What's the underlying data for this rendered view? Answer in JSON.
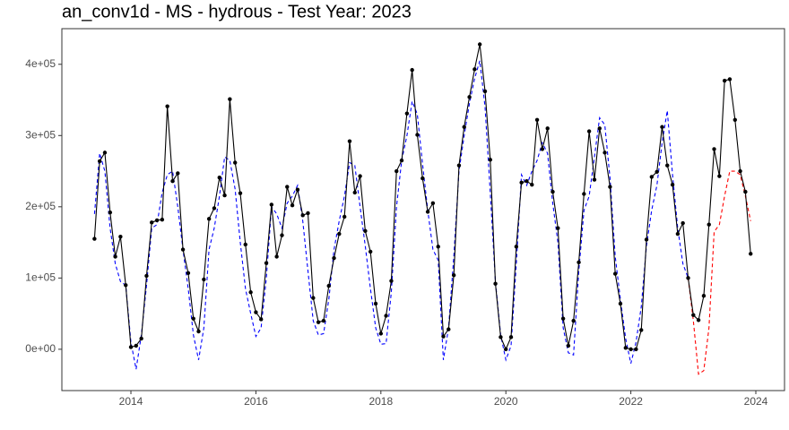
{
  "chart_data": {
    "type": "line",
    "title": "an_conv1d - MS - hydrous - Test Year: 2023",
    "x": [
      2013.417,
      2013.5,
      2013.583,
      2013.667,
      2013.75,
      2013.833,
      2013.917,
      2014,
      2014.083,
      2014.167,
      2014.25,
      2014.333,
      2014.417,
      2014.5,
      2014.583,
      2014.667,
      2014.75,
      2014.833,
      2014.917,
      2015,
      2015.083,
      2015.167,
      2015.25,
      2015.333,
      2015.417,
      2015.5,
      2015.583,
      2015.667,
      2015.75,
      2015.833,
      2015.917,
      2016,
      2016.083,
      2016.167,
      2016.25,
      2016.333,
      2016.417,
      2016.5,
      2016.583,
      2016.667,
      2016.75,
      2016.833,
      2016.917,
      2017,
      2017.083,
      2017.167,
      2017.25,
      2017.333,
      2017.417,
      2017.5,
      2017.583,
      2017.667,
      2017.75,
      2017.833,
      2017.917,
      2018,
      2018.083,
      2018.167,
      2018.25,
      2018.333,
      2018.417,
      2018.5,
      2018.583,
      2018.667,
      2018.75,
      2018.833,
      2018.917,
      2019,
      2019.083,
      2019.167,
      2019.25,
      2019.333,
      2019.417,
      2019.5,
      2019.583,
      2019.667,
      2019.75,
      2019.833,
      2019.917,
      2020,
      2020.083,
      2020.167,
      2020.25,
      2020.333,
      2020.417,
      2020.5,
      2020.583,
      2020.667,
      2020.75,
      2020.833,
      2020.917,
      2021,
      2021.083,
      2021.167,
      2021.25,
      2021.333,
      2021.417,
      2021.5,
      2021.583,
      2021.667,
      2021.75,
      2021.833,
      2021.917,
      2022,
      2022.083,
      2022.167,
      2022.25,
      2022.333,
      2022.417,
      2022.5,
      2022.583,
      2022.667,
      2022.75,
      2022.833,
      2022.917,
      2023,
      2023.083,
      2023.167,
      2023.25,
      2023.333,
      2023.417,
      2023.5,
      2023.583,
      2023.667,
      2023.75,
      2023.833,
      2023.917
    ],
    "series": [
      {
        "color": "#0000ff",
        "dash": true,
        "markers": false,
        "values": [
          190000,
          275000,
          250000,
          170000,
          120000,
          95000,
          90000,
          10000,
          -28000,
          20000,
          90000,
          170000,
          175000,
          220000,
          245000,
          250000,
          200000,
          140000,
          85000,
          20000,
          -15000,
          30000,
          140000,
          170000,
          215000,
          270000,
          265000,
          225000,
          150000,
          85000,
          50000,
          18000,
          30000,
          100000,
          200000,
          190000,
          170000,
          205000,
          215000,
          230000,
          180000,
          110000,
          40000,
          20000,
          22000,
          70000,
          140000,
          180000,
          215000,
          262000,
          258000,
          200000,
          145000,
          85000,
          30000,
          7000,
          8000,
          80000,
          200000,
          265000,
          300000,
          348000,
          330000,
          260000,
          195000,
          140000,
          125000,
          -15000,
          30000,
          130000,
          250000,
          300000,
          345000,
          380000,
          405000,
          340000,
          220000,
          95000,
          20000,
          -15000,
          5000,
          120000,
          245000,
          230000,
          250000,
          265000,
          290000,
          275000,
          205000,
          150000,
          30000,
          -5000,
          -8000,
          110000,
          195000,
          215000,
          270000,
          325000,
          315000,
          240000,
          130000,
          70000,
          15000,
          -20000,
          10000,
          60000,
          145000,
          195000,
          230000,
          290000,
          335000,
          245000,
          170000,
          120000,
          100000,
          null,
          null,
          null,
          null,
          null,
          null,
          null,
          null,
          null,
          null,
          null,
          null
        ]
      },
      {
        "color": "#ff0000",
        "dash": true,
        "markers": false,
        "values": [
          null,
          null,
          null,
          null,
          null,
          null,
          null,
          null,
          null,
          null,
          null,
          null,
          null,
          null,
          null,
          null,
          null,
          null,
          null,
          null,
          null,
          null,
          null,
          null,
          null,
          null,
          null,
          null,
          null,
          null,
          null,
          null,
          null,
          null,
          null,
          null,
          null,
          null,
          null,
          null,
          null,
          null,
          null,
          null,
          null,
          null,
          null,
          null,
          null,
          null,
          null,
          null,
          null,
          null,
          null,
          null,
          null,
          null,
          null,
          null,
          null,
          null,
          null,
          null,
          null,
          null,
          null,
          null,
          null,
          null,
          null,
          null,
          null,
          null,
          null,
          null,
          null,
          null,
          null,
          null,
          null,
          null,
          null,
          null,
          null,
          null,
          null,
          null,
          null,
          null,
          null,
          null,
          null,
          null,
          null,
          null,
          null,
          null,
          null,
          null,
          null,
          null,
          null,
          null,
          null,
          null,
          null,
          null,
          null,
          null,
          null,
          null,
          null,
          null,
          100000,
          40000,
          -35000,
          -30000,
          30000,
          165000,
          175000,
          215000,
          250000,
          250000,
          245000,
          215000,
          180000
        ]
      },
      {
        "color": "#000000",
        "dash": false,
        "markers": true,
        "values": [
          155000,
          264000,
          276000,
          192000,
          130000,
          158000,
          90000,
          3000,
          5000,
          15000,
          103000,
          178000,
          181000,
          182000,
          341000,
          236000,
          247000,
          140000,
          107000,
          43000,
          25000,
          98000,
          183000,
          198000,
          241000,
          216000,
          351000,
          262000,
          219000,
          147000,
          80000,
          52000,
          42000,
          121000,
          203000,
          130000,
          160000,
          228000,
          202000,
          224000,
          188000,
          191000,
          72000,
          38000,
          40000,
          89000,
          128000,
          162000,
          186000,
          292000,
          220000,
          243000,
          166000,
          137000,
          64000,
          22000,
          47000,
          96000,
          250000,
          265000,
          331000,
          392000,
          301000,
          240000,
          193000,
          205000,
          144000,
          18000,
          28000,
          104000,
          258000,
          312000,
          354000,
          393000,
          428000,
          362000,
          266000,
          92000,
          17000,
          0,
          17000,
          144000,
          234000,
          236000,
          231000,
          322000,
          281000,
          310000,
          221000,
          170000,
          43000,
          5000,
          40000,
          122000,
          218000,
          306000,
          238000,
          310000,
          276000,
          228000,
          106000,
          64000,
          2000,
          0,
          0,
          27000,
          154000,
          242000,
          249000,
          312000,
          258000,
          231000,
          162000,
          177000,
          100000,
          48000,
          41000,
          75000,
          175000,
          281000,
          243000,
          377000,
          379000,
          322000,
          250000,
          221000,
          134000
        ]
      }
    ],
    "xlim": [
      2012.895,
      2024.459
    ],
    "xticks": [
      2014,
      2016,
      2018,
      2020,
      2022,
      2024
    ],
    "ylim": [
      -58000,
      450000
    ],
    "yticks": [
      {
        "value": 0,
        "label": "0e+00"
      },
      {
        "value": 100000,
        "label": "1e+05"
      },
      {
        "value": 200000,
        "label": "2e+05"
      },
      {
        "value": 300000,
        "label": "3e+05"
      },
      {
        "value": 400000,
        "label": "4e+05"
      }
    ],
    "grid": false
  }
}
